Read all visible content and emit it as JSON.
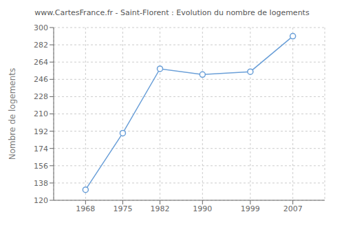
{
  "chart_data": {
    "type": "line",
    "title": "www.CartesFrance.fr - Saint-Florent : Evolution du nombre de logements",
    "ylabel": "Nombre de logements",
    "x": [
      1968,
      1975,
      1982,
      1990,
      1999,
      2007
    ],
    "values": [
      131,
      190,
      257,
      251,
      254,
      291
    ],
    "xlim": [
      1962,
      2013
    ],
    "xticks": [
      1968,
      1975,
      1982,
      1990,
      1999,
      2007
    ],
    "ylim": [
      120,
      300
    ],
    "yticks": [
      120,
      138,
      156,
      174,
      192,
      210,
      228,
      246,
      264,
      282,
      300
    ],
    "color": "#6a9fd8",
    "marker": "circle",
    "grid": true
  }
}
